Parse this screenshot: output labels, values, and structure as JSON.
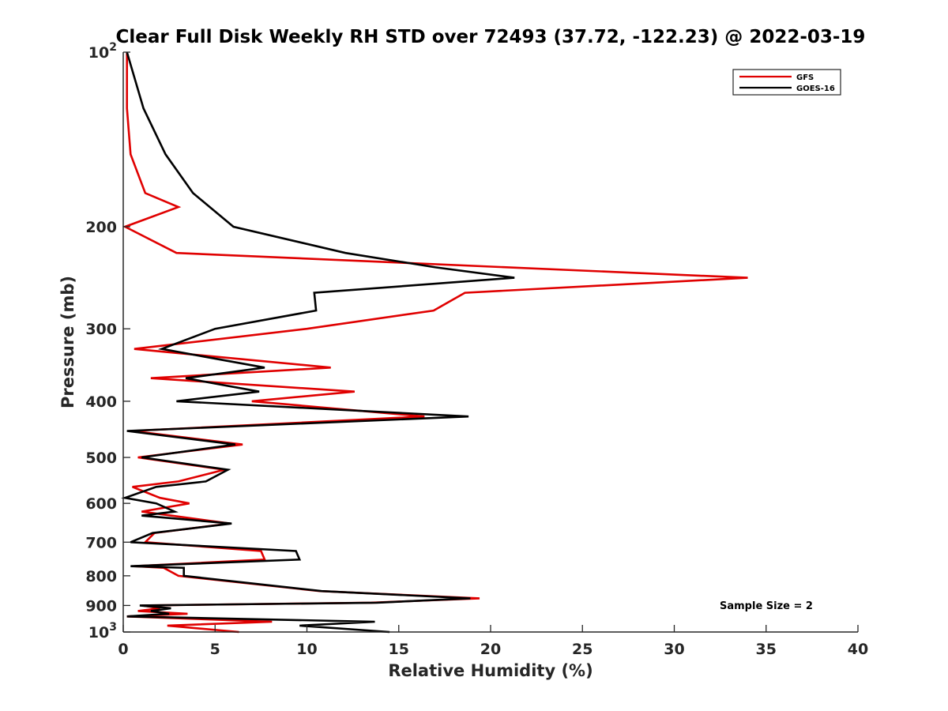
{
  "chart_data": {
    "type": "line",
    "title": "Clear Full Disk Weekly RH STD over 72493 (37.72, -122.23) @ 2022-03-19",
    "xlabel": "Relative Humidity (%)",
    "ylabel": "Pressure (mb)",
    "xlim": [
      0,
      40
    ],
    "ylim": [
      100,
      1000
    ],
    "y_scale": "log",
    "y_reversed": true,
    "grid": false,
    "legend_position": "top-right",
    "x_ticks": [
      0,
      5,
      10,
      15,
      20,
      25,
      30,
      35,
      40
    ],
    "x_tick_labels": [
      "0",
      "5",
      "10",
      "15",
      "20",
      "25",
      "30",
      "35",
      "40"
    ],
    "y_ticks": [
      100,
      200,
      300,
      400,
      500,
      600,
      700,
      800,
      900,
      1000
    ],
    "y_tick_labels": [
      {
        "base": "10",
        "exp": "2"
      },
      {
        "base": "200",
        "exp": ""
      },
      {
        "base": "300",
        "exp": ""
      },
      {
        "base": "400",
        "exp": ""
      },
      {
        "base": "500",
        "exp": ""
      },
      {
        "base": "600",
        "exp": ""
      },
      {
        "base": "700",
        "exp": ""
      },
      {
        "base": "800",
        "exp": ""
      },
      {
        "base": "900",
        "exp": ""
      },
      {
        "base": "10",
        "exp": "3"
      }
    ],
    "annotation": "Sample Size = 2",
    "series": [
      {
        "name": "GFS",
        "color": "#e00000",
        "points": [
          [
            0.2,
            100
          ],
          [
            0.2,
            125
          ],
          [
            0.4,
            150
          ],
          [
            1.2,
            175
          ],
          [
            3.0,
            185
          ],
          [
            0.1,
            200
          ],
          [
            2.9,
            222
          ],
          [
            34.0,
            245
          ],
          [
            18.6,
            260
          ],
          [
            16.9,
            279
          ],
          [
            10.0,
            300
          ],
          [
            0.6,
            325
          ],
          [
            11.3,
            350
          ],
          [
            1.5,
            365
          ],
          [
            12.6,
            385
          ],
          [
            7.0,
            400
          ],
          [
            16.4,
            425
          ],
          [
            0.5,
            450
          ],
          [
            6.5,
            475
          ],
          [
            0.8,
            500
          ],
          [
            5.5,
            525
          ],
          [
            3.0,
            550
          ],
          [
            0.5,
            562
          ],
          [
            2.0,
            587
          ],
          [
            3.6,
            600
          ],
          [
            1.0,
            620
          ],
          [
            5.8,
            650
          ],
          [
            1.7,
            675
          ],
          [
            1.2,
            700
          ],
          [
            7.5,
            725
          ],
          [
            7.7,
            750
          ],
          [
            0.6,
            770
          ],
          [
            2.2,
            775
          ],
          [
            3.0,
            800
          ],
          [
            10.7,
            850
          ],
          [
            19.4,
            875
          ],
          [
            13.5,
            890
          ],
          [
            1.0,
            900
          ],
          [
            2.0,
            910
          ],
          [
            0.8,
            920
          ],
          [
            3.5,
            930
          ],
          [
            0.2,
            940
          ],
          [
            8.1,
            960
          ],
          [
            2.4,
            975
          ],
          [
            6.3,
            1000
          ]
        ]
      },
      {
        "name": "GOES-16",
        "color": "#000000",
        "points": [
          [
            0.2,
            100
          ],
          [
            1.1,
            125
          ],
          [
            2.3,
            150
          ],
          [
            3.8,
            175
          ],
          [
            6.0,
            200
          ],
          [
            12.1,
            222
          ],
          [
            17.0,
            235
          ],
          [
            21.3,
            245
          ],
          [
            10.4,
            260
          ],
          [
            10.5,
            279
          ],
          [
            5.0,
            300
          ],
          [
            2.1,
            325
          ],
          [
            7.7,
            350
          ],
          [
            3.4,
            365
          ],
          [
            7.4,
            385
          ],
          [
            2.9,
            400
          ],
          [
            18.8,
            425
          ],
          [
            0.2,
            450
          ],
          [
            6.1,
            475
          ],
          [
            1.0,
            500
          ],
          [
            5.7,
            525
          ],
          [
            4.5,
            550
          ],
          [
            1.8,
            562
          ],
          [
            0.1,
            587
          ],
          [
            1.8,
            600
          ],
          [
            2.8,
            620
          ],
          [
            1.0,
            630
          ],
          [
            5.9,
            650
          ],
          [
            1.6,
            675
          ],
          [
            0.4,
            700
          ],
          [
            9.4,
            725
          ],
          [
            9.6,
            750
          ],
          [
            0.4,
            770
          ],
          [
            3.3,
            775
          ],
          [
            3.3,
            800
          ],
          [
            10.8,
            850
          ],
          [
            18.9,
            875
          ],
          [
            13.8,
            890
          ],
          [
            0.9,
            900
          ],
          [
            2.6,
            910
          ],
          [
            1.5,
            920
          ],
          [
            2.5,
            930
          ],
          [
            0.2,
            940
          ],
          [
            13.7,
            960
          ],
          [
            9.6,
            975
          ],
          [
            14.5,
            1000
          ]
        ]
      }
    ]
  }
}
